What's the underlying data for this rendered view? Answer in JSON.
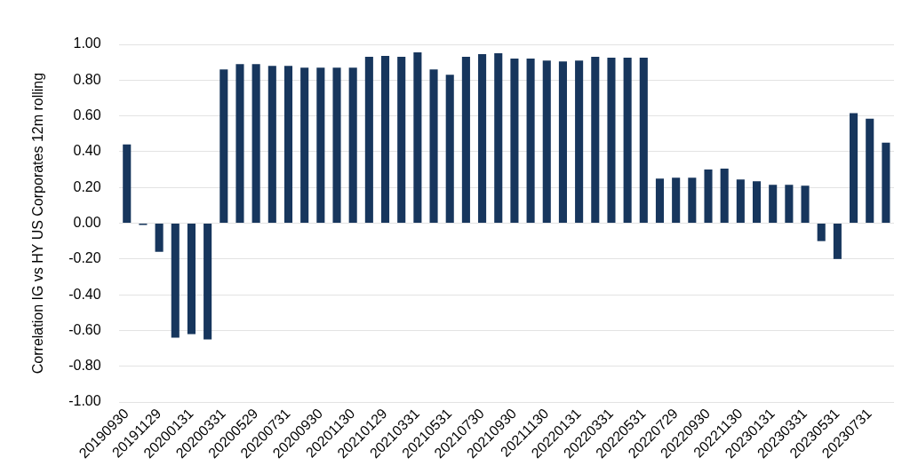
{
  "chart_data": {
    "type": "bar",
    "ylabel": "Correlation IG vs HY US Corporates 12m rolling",
    "categories": [
      "20190930",
      null,
      "20191129",
      null,
      "20200131",
      null,
      "20200331",
      null,
      "20200529",
      null,
      "20200731",
      null,
      "20200930",
      null,
      "20201130",
      null,
      "20210129",
      null,
      "20210331",
      null,
      "20210531",
      null,
      "20210730",
      null,
      "20210930",
      null,
      "20211130",
      null,
      "20220131",
      null,
      "20220331",
      null,
      "20220531",
      null,
      "20220729",
      null,
      "20220930",
      null,
      "20221130",
      null,
      "20230131",
      null,
      "20230331",
      null,
      "20230531",
      null,
      "20230731",
      null
    ],
    "values": [
      0.44,
      -0.01,
      -0.16,
      -0.64,
      -0.62,
      -0.65,
      0.86,
      0.89,
      0.89,
      0.88,
      0.88,
      0.87,
      0.87,
      0.87,
      0.87,
      0.93,
      0.935,
      0.93,
      0.955,
      0.86,
      0.83,
      0.93,
      0.945,
      0.95,
      0.92,
      0.92,
      0.91,
      0.905,
      0.91,
      0.93,
      0.925,
      0.925,
      0.925,
      0.25,
      0.255,
      0.255,
      0.3,
      0.305,
      0.245,
      0.235,
      0.215,
      0.215,
      0.21,
      -0.1,
      -0.2,
      0.615,
      0.585,
      0.45
    ],
    "color": "#17365d",
    "ylim": [
      -1,
      1
    ],
    "yticks": [
      {
        "value": -1,
        "label": "-1.00"
      },
      {
        "value": -0.8,
        "label": "-0.80"
      },
      {
        "value": -0.6,
        "label": "-0.60"
      },
      {
        "value": -0.4,
        "label": "-0.40"
      },
      {
        "value": -0.2,
        "label": "-0.20"
      },
      {
        "value": 0,
        "label": "0.00"
      },
      {
        "value": 0.2,
        "label": "0.20"
      },
      {
        "value": 0.4,
        "label": "0.40"
      },
      {
        "value": 0.6,
        "label": "0.60"
      },
      {
        "value": 0.8,
        "label": "0.80"
      },
      {
        "value": 1,
        "label": "1.00"
      }
    ],
    "grid": "y",
    "legend": false
  }
}
